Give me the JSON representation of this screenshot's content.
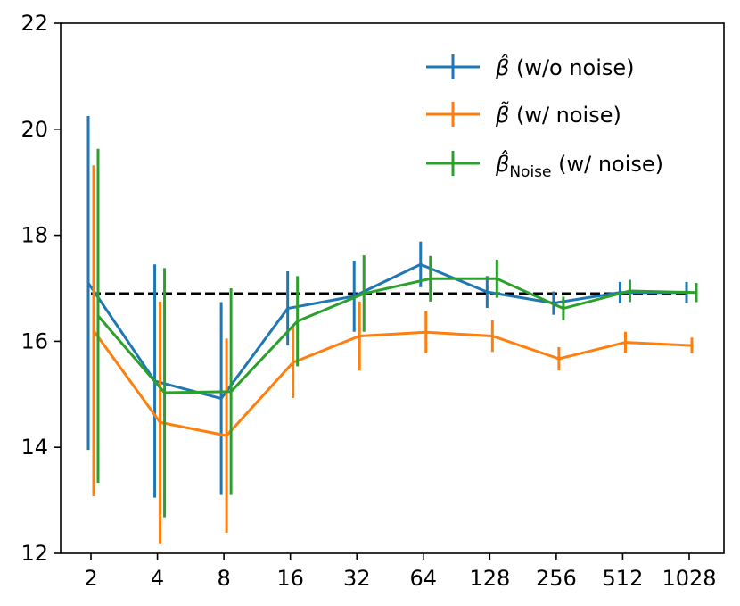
{
  "chart_data": {
    "type": "line",
    "title": "",
    "xlabel": "",
    "ylabel": "",
    "categories": [
      "2",
      "4",
      "8",
      "16",
      "32",
      "64",
      "128",
      "256",
      "512",
      "1028"
    ],
    "ylim": [
      12,
      22
    ],
    "yticks": [
      "12",
      "14",
      "16",
      "18",
      "20",
      "22"
    ],
    "grid": false,
    "legend_position": "top-right",
    "reference_line": {
      "value": 16.9,
      "style": "dashed",
      "color": "#000000"
    },
    "series": [
      {
        "name": "β̂ (w/o noise)",
        "legend_symbol": "β̂",
        "legend_subscript": "",
        "legend_suffix": " (w/o noise)",
        "color": "#1f77b4",
        "values": [
          17.1,
          15.25,
          14.92,
          16.62,
          16.85,
          17.45,
          16.93,
          16.72,
          16.92,
          16.92
        ],
        "errors": [
          3.15,
          2.2,
          1.82,
          0.7,
          0.67,
          0.43,
          0.3,
          0.22,
          0.2,
          0.2
        ]
      },
      {
        "name": "β̃ (w/ noise)",
        "legend_symbol": "β̃",
        "legend_subscript": "",
        "legend_suffix": " (w/ noise)",
        "color": "#ff7f0e",
        "values": [
          16.2,
          14.47,
          14.22,
          15.6,
          16.1,
          16.17,
          16.1,
          15.67,
          15.98,
          15.92
        ],
        "errors": [
          3.12,
          2.28,
          1.83,
          0.67,
          0.65,
          0.4,
          0.3,
          0.22,
          0.2,
          0.15
        ]
      },
      {
        "name": "β̂Noise (w/ noise)",
        "legend_symbol": "β̂",
        "legend_subscript": "Noise",
        "legend_suffix": " (w/ noise)",
        "color": "#2ca02c",
        "values": [
          16.48,
          15.03,
          15.05,
          16.38,
          16.9,
          17.18,
          17.18,
          16.62,
          16.95,
          16.92
        ],
        "errors": [
          3.15,
          2.35,
          1.95,
          0.85,
          0.72,
          0.43,
          0.36,
          0.22,
          0.21,
          0.18
        ]
      }
    ]
  }
}
